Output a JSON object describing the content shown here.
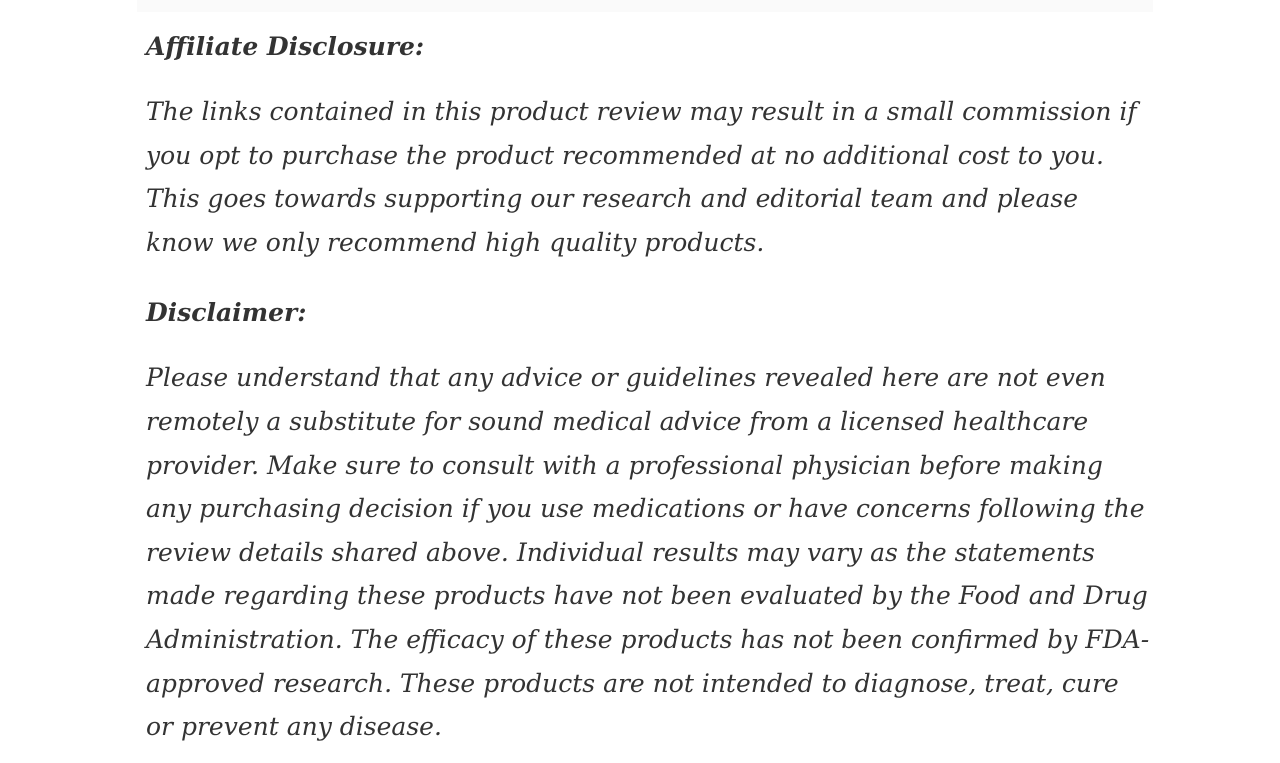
{
  "page": {
    "background_color": "#ffffff",
    "text_color": "#333333",
    "top_strip_color": "#fafafa"
  },
  "article": {
    "sections": [
      {
        "heading": "Affiliate Disclosure:",
        "body": "The links contained in this product review may result in a small commission if you opt to purchase the product recommended at no additional cost to you. This goes towards supporting our research and editorial team and please know we only recommend high quality products."
      },
      {
        "heading": "Disclaimer:",
        "body": "Please understand that any advice or guidelines revealed here are not even remotely a substitute for sound medical advice from a licensed healthcare provider. Make sure to consult with a professional physician before making any purchasing decision if you use medications or have concerns following the review details shared above. Individual results may vary as the statements made regarding these products have not been evaluated by the Food and Drug Administration. The efficacy of these products has not been confirmed by FDA-approved research. These products are not intended to diagnose, treat, cure or prevent any disease."
      }
    ]
  }
}
